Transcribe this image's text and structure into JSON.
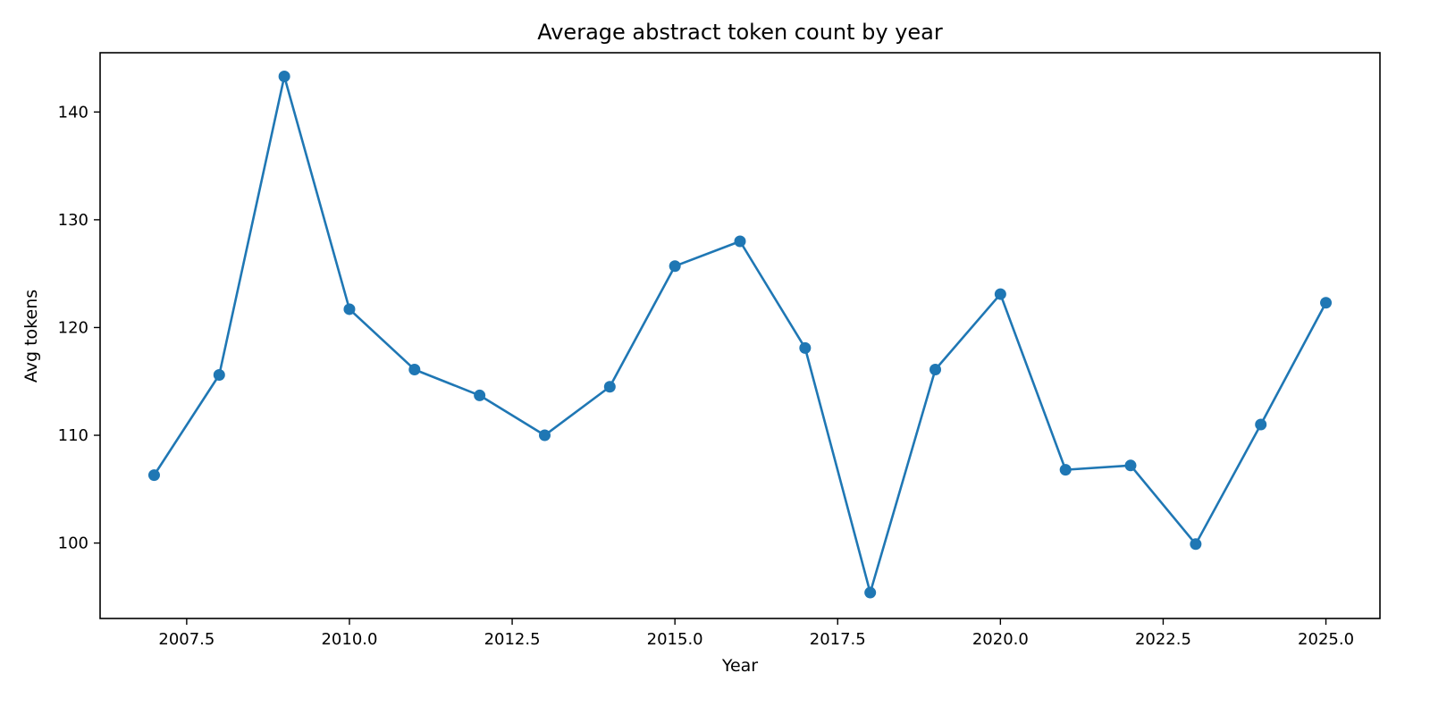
{
  "chart_data": {
    "type": "line",
    "title": "Average abstract token count by year",
    "xlabel": "Year",
    "ylabel": "Avg tokens",
    "xlim": [
      2006.17,
      2025.83
    ],
    "ylim": [
      93.0,
      145.5
    ],
    "x_ticks": [
      2007.5,
      2010.0,
      2012.5,
      2015.0,
      2017.5,
      2020.0,
      2022.5,
      2025.0
    ],
    "x_tick_labels": [
      "2007.5",
      "2010.0",
      "2012.5",
      "2015.0",
      "2017.5",
      "2020.0",
      "2022.5",
      "2025.0"
    ],
    "y_ticks": [
      100,
      110,
      120,
      130,
      140
    ],
    "y_tick_labels": [
      "100",
      "110",
      "120",
      "130",
      "140"
    ],
    "grid": false,
    "series": [
      {
        "color": "#1f77b4",
        "marker": "circle",
        "x": [
          2007,
          2008,
          2009,
          2010,
          2011,
          2012,
          2013,
          2014,
          2015,
          2016,
          2017,
          2018,
          2019,
          2020,
          2021,
          2022,
          2023,
          2024,
          2025
        ],
        "y": [
          106.3,
          115.6,
          143.3,
          121.7,
          116.1,
          113.7,
          110.0,
          114.5,
          125.7,
          128.0,
          118.1,
          95.4,
          116.1,
          123.1,
          106.8,
          107.2,
          99.9,
          111.0,
          122.3
        ]
      }
    ]
  }
}
